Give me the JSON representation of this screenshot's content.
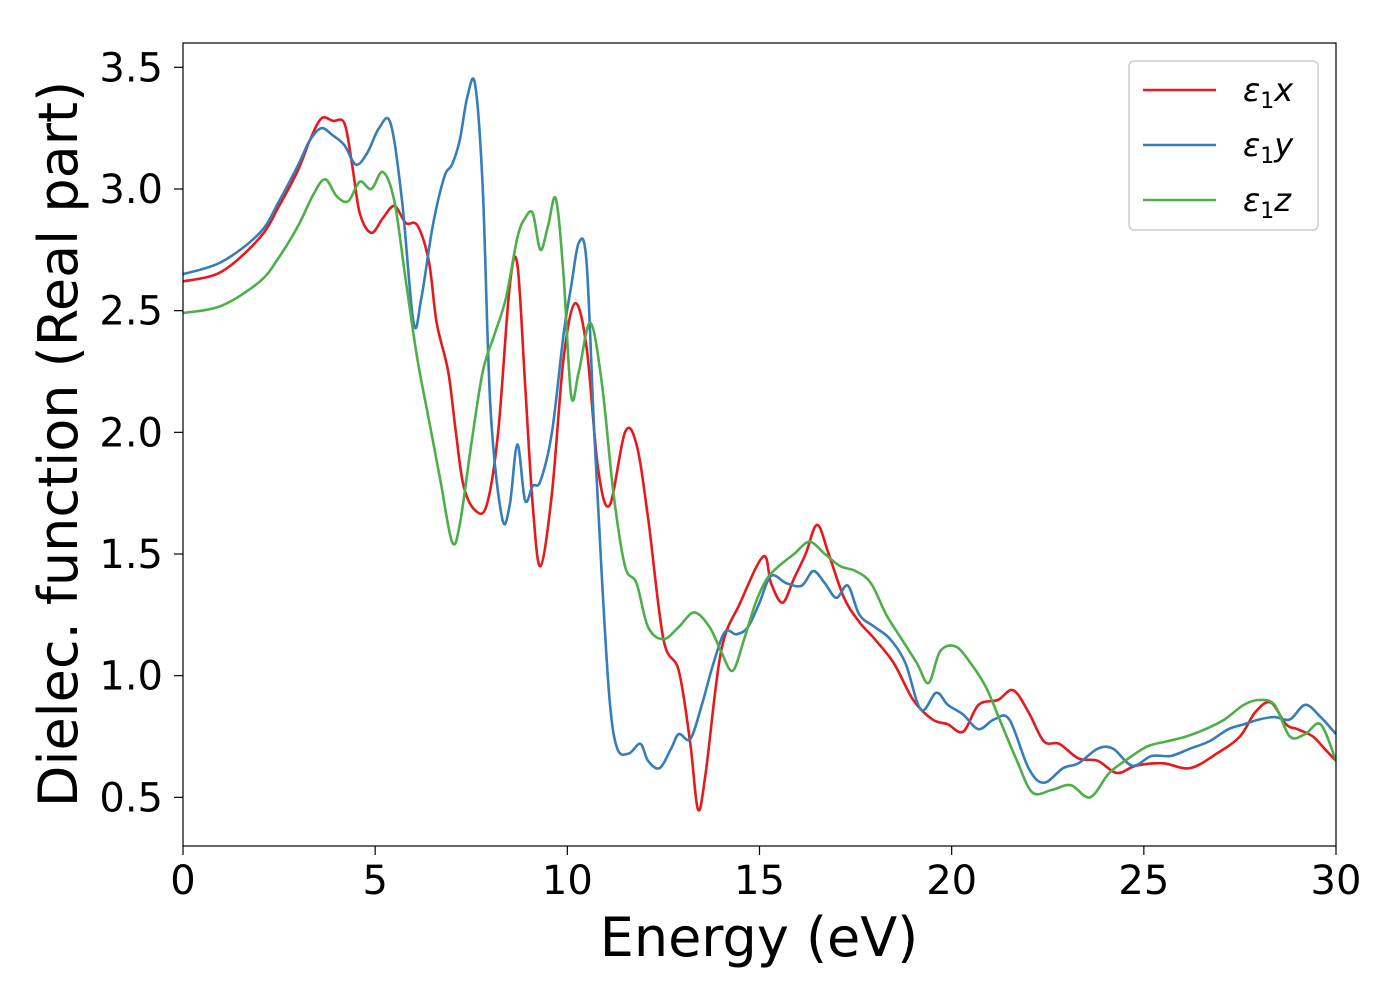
{
  "chart_data": {
    "type": "line",
    "title": "",
    "xlabel": "Energy (eV)",
    "ylabel": "Dielec. function (Real part)",
    "xlim": [
      0,
      30
    ],
    "ylim": [
      0.3,
      3.6
    ],
    "xticks": [
      0,
      5,
      10,
      15,
      20,
      25,
      30
    ],
    "xtick_labels": [
      "0",
      "5",
      "10",
      "15",
      "20",
      "25",
      "30"
    ],
    "yticks": [
      0.5,
      1.0,
      1.5,
      2.0,
      2.5,
      3.0,
      3.5
    ],
    "ytick_labels": [
      "0.5",
      "1.0",
      "1.5",
      "2.0",
      "2.5",
      "3.0",
      "3.5"
    ],
    "grid": false,
    "legend_position": "top-right",
    "series": [
      {
        "name": "ε₁x",
        "name_main": "ε",
        "name_sub": "1",
        "name_suffix": "x",
        "color": "#e41a1c",
        "x": [
          0,
          1,
          2,
          2.5,
          3,
          3.3,
          3.6,
          3.9,
          4.2,
          4.4,
          4.6,
          4.9,
          5.2,
          5.5,
          5.8,
          6.1,
          6.4,
          6.6,
          6.9,
          7.1,
          7.3,
          7.6,
          7.9,
          8.2,
          8.5,
          8.7,
          8.9,
          9.1,
          9.3,
          9.6,
          9.9,
          10.2,
          10.5,
          10.8,
          11.1,
          11.5,
          11.8,
          12.1,
          12.5,
          12.9,
          13.2,
          13.4,
          13.6,
          14.0,
          14.5,
          15.1,
          15.3,
          15.6,
          15.9,
          16.2,
          16.5,
          16.8,
          17.2,
          17.6,
          18.0,
          18.5,
          19.0,
          19.5,
          19.9,
          20.3,
          20.7,
          21.2,
          21.6,
          22.0,
          22.4,
          22.8,
          23.3,
          23.8,
          24.3,
          24.8,
          25.5,
          26.2,
          26.9,
          27.5,
          27.9,
          28.3,
          28.7,
          29.0,
          29.4,
          29.7,
          30.0
        ],
        "y": [
          2.62,
          2.66,
          2.8,
          2.93,
          3.08,
          3.2,
          3.29,
          3.28,
          3.27,
          3.1,
          2.9,
          2.82,
          2.88,
          2.93,
          2.86,
          2.85,
          2.7,
          2.45,
          2.25,
          2.0,
          1.78,
          1.68,
          1.7,
          2.0,
          2.6,
          2.69,
          2.2,
          1.7,
          1.45,
          1.75,
          2.3,
          2.53,
          2.35,
          1.85,
          1.7,
          2.0,
          1.95,
          1.65,
          1.15,
          1.02,
          0.72,
          0.45,
          0.6,
          1.1,
          1.3,
          1.49,
          1.38,
          1.3,
          1.4,
          1.5,
          1.62,
          1.5,
          1.32,
          1.22,
          1.15,
          1.05,
          0.9,
          0.82,
          0.8,
          0.77,
          0.88,
          0.9,
          0.94,
          0.85,
          0.73,
          0.72,
          0.66,
          0.65,
          0.6,
          0.63,
          0.64,
          0.62,
          0.68,
          0.75,
          0.85,
          0.89,
          0.8,
          0.78,
          0.75,
          0.7,
          0.65
        ]
      },
      {
        "name": "ε₁y",
        "name_main": "ε",
        "name_sub": "1",
        "name_suffix": "y",
        "color": "#377eb8",
        "x": [
          0,
          1,
          2,
          2.5,
          3,
          3.3,
          3.6,
          3.9,
          4.2,
          4.5,
          4.8,
          5.1,
          5.4,
          5.7,
          6.0,
          6.2,
          6.5,
          6.8,
          7.0,
          7.2,
          7.4,
          7.6,
          7.8,
          8.0,
          8.3,
          8.5,
          8.7,
          8.9,
          9.1,
          9.3,
          9.6,
          9.9,
          10.1,
          10.3,
          10.5,
          10.7,
          10.9,
          11.1,
          11.3,
          11.6,
          11.9,
          12.1,
          12.4,
          12.7,
          12.9,
          13.2,
          13.5,
          13.8,
          14.1,
          14.4,
          14.7,
          15.0,
          15.3,
          15.7,
          16.1,
          16.4,
          16.7,
          17.0,
          17.3,
          17.6,
          18.0,
          18.4,
          18.8,
          19.2,
          19.6,
          19.9,
          20.3,
          20.7,
          21.1,
          21.5,
          22.0,
          22.4,
          22.9,
          23.3,
          23.8,
          24.2,
          24.7,
          25.2,
          25.7,
          26.2,
          26.7,
          27.2,
          27.6,
          28.0,
          28.4,
          28.8,
          29.2,
          29.6,
          30.0
        ],
        "y": [
          2.65,
          2.7,
          2.82,
          2.95,
          3.1,
          3.2,
          3.25,
          3.22,
          3.18,
          3.1,
          3.15,
          3.25,
          3.27,
          2.95,
          2.45,
          2.55,
          2.85,
          3.05,
          3.1,
          3.2,
          3.38,
          3.43,
          3.0,
          2.1,
          1.65,
          1.7,
          1.95,
          1.72,
          1.78,
          1.8,
          2.0,
          2.4,
          2.6,
          2.78,
          2.7,
          2.0,
          1.4,
          0.9,
          0.7,
          0.68,
          0.72,
          0.65,
          0.62,
          0.7,
          0.76,
          0.74,
          0.88,
          1.05,
          1.18,
          1.17,
          1.2,
          1.3,
          1.41,
          1.38,
          1.37,
          1.43,
          1.38,
          1.32,
          1.37,
          1.25,
          1.2,
          1.15,
          1.05,
          0.86,
          0.93,
          0.88,
          0.84,
          0.78,
          0.82,
          0.82,
          0.62,
          0.56,
          0.62,
          0.64,
          0.7,
          0.7,
          0.63,
          0.67,
          0.67,
          0.7,
          0.73,
          0.78,
          0.8,
          0.82,
          0.83,
          0.82,
          0.88,
          0.83,
          0.76
        ]
      },
      {
        "name": "ε₁z",
        "name_main": "ε",
        "name_sub": "1",
        "name_suffix": "z",
        "color": "#4daf4a",
        "x": [
          0,
          1,
          2,
          2.5,
          3,
          3.4,
          3.7,
          4.0,
          4.3,
          4.6,
          4.9,
          5.2,
          5.5,
          5.8,
          6.1,
          6.4,
          6.7,
          7.0,
          7.2,
          7.5,
          7.8,
          8.1,
          8.4,
          8.7,
          8.9,
          9.1,
          9.3,
          9.5,
          9.7,
          9.9,
          10.1,
          10.3,
          10.6,
          10.9,
          11.2,
          11.5,
          11.8,
          12.1,
          12.5,
          12.9,
          13.3,
          13.7,
          14.0,
          14.3,
          14.6,
          14.9,
          15.2,
          15.5,
          15.9,
          16.3,
          16.7,
          17.1,
          17.5,
          17.9,
          18.3,
          18.7,
          19.1,
          19.4,
          19.7,
          20.1,
          20.5,
          20.9,
          21.3,
          21.7,
          22.1,
          22.6,
          23.1,
          23.6,
          24.1,
          24.6,
          25.1,
          25.6,
          26.1,
          26.6,
          27.1,
          27.6,
          28.0,
          28.4,
          28.8,
          29.2,
          29.6,
          30.0
        ],
        "y": [
          2.49,
          2.52,
          2.62,
          2.72,
          2.85,
          2.98,
          3.04,
          2.97,
          2.95,
          3.03,
          3.0,
          3.07,
          2.95,
          2.62,
          2.3,
          2.05,
          1.8,
          1.55,
          1.62,
          1.95,
          2.25,
          2.4,
          2.55,
          2.8,
          2.88,
          2.9,
          2.75,
          2.85,
          2.96,
          2.65,
          2.15,
          2.25,
          2.45,
          2.2,
          1.75,
          1.45,
          1.38,
          1.2,
          1.15,
          1.2,
          1.26,
          1.2,
          1.1,
          1.02,
          1.15,
          1.3,
          1.4,
          1.45,
          1.5,
          1.55,
          1.5,
          1.45,
          1.43,
          1.38,
          1.25,
          1.15,
          1.05,
          0.97,
          1.1,
          1.12,
          1.05,
          0.95,
          0.8,
          0.65,
          0.52,
          0.53,
          0.55,
          0.5,
          0.6,
          0.66,
          0.71,
          0.73,
          0.75,
          0.78,
          0.82,
          0.88,
          0.9,
          0.88,
          0.75,
          0.76,
          0.8,
          0.65
        ]
      }
    ]
  }
}
